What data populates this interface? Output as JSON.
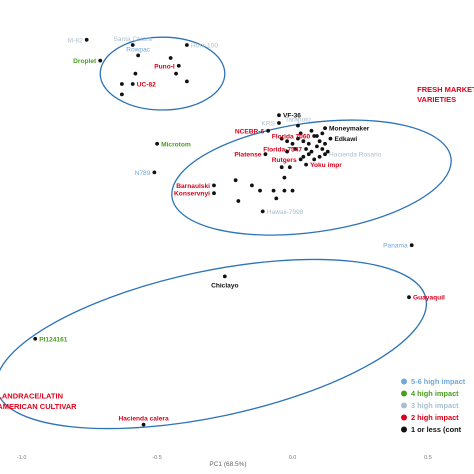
{
  "chart_data": {
    "type": "scatter",
    "title": "",
    "xlabel": "PC1 (68.5%)",
    "ylabel": "",
    "xlim": [
      -1.08,
      0.67
    ],
    "ylim": [
      -0.78,
      0.92
    ],
    "x_ticks": [
      {
        "value": -1.0,
        "label": "-1.0"
      },
      {
        "value": -0.5,
        "label": "-0.5"
      },
      {
        "value": 0.0,
        "label": "0.0"
      },
      {
        "value": 0.5,
        "label": "0.5"
      }
    ],
    "grid": false,
    "colors": {
      "cat_56": "#6fa8dc",
      "cat_4": "#4a9e1e",
      "cat_3": "#a8bfcf",
      "cat_2": "#d9001b",
      "cat_1": "#111111",
      "ellipse": "#2c73b8",
      "group_label": "#e0001b"
    },
    "legend": {
      "placement": "bottom-right",
      "entries": [
        {
          "label": "5-6 high impact",
          "category": "cat_56"
        },
        {
          "label": "4 high impact",
          "category": "cat_4"
        },
        {
          "label": "3 high impact",
          "category": "cat_3"
        },
        {
          "label": "2 high impact",
          "category": "cat_2"
        },
        {
          "label": "1 or less (cont",
          "category": "cat_1"
        }
      ]
    },
    "group_labels": [
      {
        "text": "FRESH MARKET",
        "x": 0.46,
        "y": 0.59
      },
      {
        "text": "VARIETIES",
        "x": 0.46,
        "y": 0.55
      },
      {
        "text": "LANDRACE/LATIN",
        "x": -1.09,
        "y": -0.59
      },
      {
        "text": "AMERICAN CULTIVAR",
        "x": -1.09,
        "y": -0.63
      }
    ],
    "ellipses": [
      {
        "cx": -0.48,
        "cy": 0.66,
        "rx": 0.23,
        "ry": 0.14,
        "rotation_deg": 0
      },
      {
        "cx": 0.07,
        "cy": 0.26,
        "rx": 0.52,
        "ry": 0.21,
        "rotation_deg": -8
      },
      {
        "cx": -0.3,
        "cy": -0.38,
        "rx": 0.81,
        "ry": 0.28,
        "rotation_deg": -12
      }
    ],
    "points": [
      {
        "x": -0.76,
        "y": 0.79,
        "label": "M-82",
        "category": "cat_3",
        "label_pos": "left"
      },
      {
        "x": -0.59,
        "y": 0.77,
        "label": "Santa Chiara",
        "category": "cat_3",
        "label_pos": "above"
      },
      {
        "x": -0.57,
        "y": 0.73,
        "label": "Rowpac",
        "category": "cat_56",
        "label_pos": "above"
      },
      {
        "x": -0.39,
        "y": 0.77,
        "label": "Hunt-100",
        "category": "cat_3",
        "label_pos": "right"
      },
      {
        "x": -0.71,
        "y": 0.71,
        "label": "Droplet",
        "category": "cat_4",
        "label_pos": "left"
      },
      {
        "x": -0.42,
        "y": 0.69,
        "label": "Puno-I",
        "category": "cat_2",
        "label_pos": "left"
      },
      {
        "x": -0.59,
        "y": 0.62,
        "label": "UC-82",
        "category": "cat_2",
        "label_pos": "right"
      },
      {
        "x": -0.43,
        "y": 0.66,
        "label": "",
        "category": "cat_1"
      },
      {
        "x": -0.45,
        "y": 0.72,
        "label": "",
        "category": "cat_1"
      },
      {
        "x": -0.39,
        "y": 0.63,
        "label": "",
        "category": "cat_1"
      },
      {
        "x": -0.63,
        "y": 0.62,
        "label": "",
        "category": "cat_1"
      },
      {
        "x": -0.63,
        "y": 0.58,
        "label": "",
        "category": "cat_1"
      },
      {
        "x": -0.58,
        "y": 0.66,
        "label": "",
        "category": "cat_1"
      },
      {
        "x": -0.05,
        "y": 0.5,
        "label": "VF-36",
        "category": "cat_1",
        "label_pos": "right"
      },
      {
        "x": 0.12,
        "y": 0.45,
        "label": "Moneymaker",
        "category": "cat_1",
        "label_pos": "right"
      },
      {
        "x": 0.14,
        "y": 0.41,
        "label": "Edkawi",
        "category": "cat_1",
        "label_pos": "right"
      },
      {
        "x": -0.09,
        "y": 0.44,
        "label": "NCEBR-6",
        "category": "cat_2",
        "label_pos": "left"
      },
      {
        "x": 0.08,
        "y": 0.42,
        "label": "Florida 7060",
        "category": "cat_2",
        "label_pos": "left"
      },
      {
        "x": 0.05,
        "y": 0.37,
        "label": "Florida-7547",
        "category": "cat_2",
        "label_pos": "left"
      },
      {
        "x": -0.1,
        "y": 0.35,
        "label": "Platense",
        "category": "cat_2",
        "label_pos": "left"
      },
      {
        "x": 0.03,
        "y": 0.33,
        "label": "Rutgers",
        "category": "cat_2",
        "label_pos": "left"
      },
      {
        "x": 0.05,
        "y": 0.31,
        "label": "Yoku impr",
        "category": "cat_2",
        "label_pos": "right"
      },
      {
        "x": -0.05,
        "y": 0.47,
        "label": "KRS",
        "category": "cat_3",
        "label_pos": "left"
      },
      {
        "x": 0.02,
        "y": 0.46,
        "label": "Tarapoto",
        "category": "cat_3",
        "label_pos": "above"
      },
      {
        "x": 0.12,
        "y": 0.35,
        "label": "Hacienda Rosario",
        "category": "cat_3",
        "label_pos": "right"
      },
      {
        "x": -0.5,
        "y": 0.39,
        "label": "Microtom",
        "category": "cat_4",
        "label_pos": "right"
      },
      {
        "x": -0.51,
        "y": 0.28,
        "label": "N789",
        "category": "cat_56",
        "label_pos": "left"
      },
      {
        "x": -0.29,
        "y": 0.23,
        "label": "Barnaulski",
        "category": "cat_2",
        "label_pos": "left"
      },
      {
        "x": -0.29,
        "y": 0.2,
        "label": "Konservnyi",
        "category": "cat_2",
        "label_pos": "left"
      },
      {
        "x": -0.11,
        "y": 0.13,
        "label": "Hawaii-7998",
        "category": "cat_3",
        "label_pos": "right"
      },
      {
        "x": -0.12,
        "y": 0.21,
        "label": "",
        "category": "cat_1"
      },
      {
        "x": -0.07,
        "y": 0.21,
        "label": "",
        "category": "cat_1"
      },
      {
        "x": -0.03,
        "y": 0.21,
        "label": "",
        "category": "cat_1"
      },
      {
        "x": -0.06,
        "y": 0.18,
        "label": "",
        "category": "cat_1"
      },
      {
        "x": 0.0,
        "y": 0.21,
        "label": "",
        "category": "cat_1"
      },
      {
        "x": -0.03,
        "y": 0.26,
        "label": "",
        "category": "cat_1"
      },
      {
        "x": -0.01,
        "y": 0.3,
        "label": "",
        "category": "cat_1"
      },
      {
        "x": -0.04,
        "y": 0.3,
        "label": "",
        "category": "cat_1"
      },
      {
        "x": -0.21,
        "y": 0.25,
        "label": "",
        "category": "cat_1"
      },
      {
        "x": -0.15,
        "y": 0.23,
        "label": "",
        "category": "cat_1"
      },
      {
        "x": -0.2,
        "y": 0.17,
        "label": "",
        "category": "cat_1"
      },
      {
        "x": -0.04,
        "y": 0.41,
        "label": "",
        "category": "cat_1"
      },
      {
        "x": -0.02,
        "y": 0.4,
        "label": "",
        "category": "cat_1"
      },
      {
        "x": 0.0,
        "y": 0.39,
        "label": "",
        "category": "cat_1"
      },
      {
        "x": 0.02,
        "y": 0.41,
        "label": "",
        "category": "cat_1"
      },
      {
        "x": 0.04,
        "y": 0.4,
        "label": "",
        "category": "cat_1"
      },
      {
        "x": 0.06,
        "y": 0.39,
        "label": "",
        "category": "cat_1"
      },
      {
        "x": 0.03,
        "y": 0.43,
        "label": "",
        "category": "cat_1"
      },
      {
        "x": 0.07,
        "y": 0.36,
        "label": "",
        "category": "cat_1"
      },
      {
        "x": 0.09,
        "y": 0.38,
        "label": "",
        "category": "cat_1"
      },
      {
        "x": 0.1,
        "y": 0.4,
        "label": "",
        "category": "cat_1"
      },
      {
        "x": 0.11,
        "y": 0.37,
        "label": "",
        "category": "cat_1"
      },
      {
        "x": 0.12,
        "y": 0.39,
        "label": "",
        "category": "cat_1"
      },
      {
        "x": 0.13,
        "y": 0.36,
        "label": "",
        "category": "cat_1"
      },
      {
        "x": 0.1,
        "y": 0.34,
        "label": "",
        "category": "cat_1"
      },
      {
        "x": 0.08,
        "y": 0.33,
        "label": "",
        "category": "cat_1"
      },
      {
        "x": 0.06,
        "y": 0.35,
        "label": "",
        "category": "cat_1"
      },
      {
        "x": 0.01,
        "y": 0.37,
        "label": "",
        "category": "cat_1"
      },
      {
        "x": -0.02,
        "y": 0.36,
        "label": "",
        "category": "cat_1"
      },
      {
        "x": 0.04,
        "y": 0.34,
        "label": "",
        "category": "cat_1"
      },
      {
        "x": 0.09,
        "y": 0.42,
        "label": "",
        "category": "cat_1"
      },
      {
        "x": 0.11,
        "y": 0.43,
        "label": "",
        "category": "cat_1"
      },
      {
        "x": 0.07,
        "y": 0.44,
        "label": "",
        "category": "cat_1"
      },
      {
        "x": 0.44,
        "y": 0.0,
        "label": "Panama",
        "category": "cat_56",
        "label_pos": "left"
      },
      {
        "x": -0.25,
        "y": -0.12,
        "label": "Chiclayo",
        "category": "cat_1",
        "label_pos": "below"
      },
      {
        "x": 0.43,
        "y": -0.2,
        "label": "Guayaquil",
        "category": "cat_2",
        "label_pos": "right"
      },
      {
        "x": -0.95,
        "y": -0.36,
        "label": "PI124161",
        "category": "cat_4",
        "label_pos": "right"
      },
      {
        "x": -0.55,
        "y": -0.69,
        "label": "Hacienda calera",
        "category": "cat_2",
        "label_pos": "above"
      }
    ]
  }
}
